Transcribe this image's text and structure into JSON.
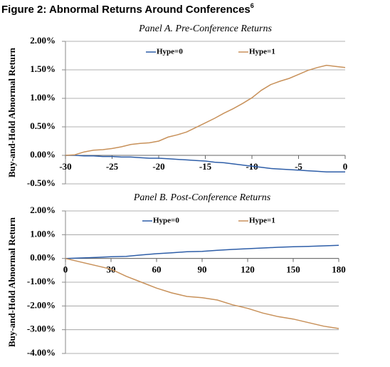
{
  "title": "Figure 2: Abnormal Returns Around Conferences",
  "title_footnote": "6",
  "chart_data": [
    {
      "type": "line",
      "subtitle": "Panel A. Pre-Conference Returns",
      "y_label": "Buy-and-Hold Abnormal Return",
      "x": [
        -30,
        -29,
        -28,
        -27,
        -26,
        -25,
        -24,
        -23,
        -22,
        -21,
        -20,
        -19,
        -18,
        -17,
        -16,
        -15,
        -14,
        -13,
        -12,
        -11,
        -10,
        -9,
        -8,
        -7,
        -6,
        -5,
        -4,
        -3,
        -2,
        -1,
        0
      ],
      "xlim": [
        -30,
        0
      ],
      "xticks": [
        -30,
        -25,
        -20,
        -15,
        -10,
        -5,
        0
      ],
      "ylim": [
        -0.5,
        2.0
      ],
      "yticks": [
        {
          "value": -0.5,
          "label": "-0.50%"
        },
        {
          "value": 0,
          "label": "0.00%"
        },
        {
          "value": 0.5,
          "label": "0.50%"
        },
        {
          "value": 1.0,
          "label": "1.00%"
        },
        {
          "value": 1.5,
          "label": "1.50%"
        },
        {
          "value": 2.0,
          "label": "2.00%"
        }
      ],
      "grid": true,
      "series": [
        {
          "name": "Hype=0",
          "color": "#2e5ea8",
          "values": [
            0,
            0,
            -0.01,
            -0.01,
            -0.02,
            -0.02,
            -0.03,
            -0.03,
            -0.04,
            -0.05,
            -0.05,
            -0.06,
            -0.07,
            -0.08,
            -0.09,
            -0.1,
            -0.12,
            -0.13,
            -0.15,
            -0.17,
            -0.19,
            -0.21,
            -0.23,
            -0.24,
            -0.25,
            -0.26,
            -0.27,
            -0.28,
            -0.29,
            -0.29,
            -0.29
          ]
        },
        {
          "name": "Hype=1",
          "color": "#c8915a",
          "values": [
            0,
            0.01,
            0.06,
            0.09,
            0.1,
            0.12,
            0.15,
            0.19,
            0.21,
            0.22,
            0.25,
            0.32,
            0.36,
            0.41,
            0.49,
            0.57,
            0.65,
            0.74,
            0.82,
            0.91,
            1.01,
            1.14,
            1.24,
            1.3,
            1.35,
            1.42,
            1.49,
            1.54,
            1.58,
            1.56,
            1.54
          ]
        }
      ]
    },
    {
      "type": "line",
      "subtitle": "Panel B. Post-Conference Returns",
      "y_label": "Buy-and-Hold Abnormal Return",
      "x": [
        0,
        10,
        20,
        30,
        40,
        50,
        60,
        70,
        80,
        90,
        100,
        110,
        120,
        130,
        140,
        150,
        160,
        170,
        180
      ],
      "xlim": [
        0,
        180
      ],
      "xticks": [
        0,
        30,
        60,
        90,
        120,
        150,
        180
      ],
      "ylim": [
        -4.0,
        2.0
      ],
      "yticks": [
        {
          "value": -4.0,
          "label": "-4.00%"
        },
        {
          "value": -3.0,
          "label": "-3.00%"
        },
        {
          "value": -2.0,
          "label": "-2.00%"
        },
        {
          "value": -1.0,
          "label": "-1.00%"
        },
        {
          "value": 0,
          "label": "0.00%"
        },
        {
          "value": 1.0,
          "label": "1.00%"
        },
        {
          "value": 2.0,
          "label": "2.00%"
        }
      ],
      "grid": true,
      "series": [
        {
          "name": "Hype=0",
          "color": "#2e5ea8",
          "values": [
            0,
            0.02,
            0.04,
            0.07,
            0.09,
            0.15,
            0.2,
            0.24,
            0.28,
            0.3,
            0.34,
            0.38,
            0.41,
            0.44,
            0.47,
            0.49,
            0.51,
            0.53,
            0.55
          ]
        },
        {
          "name": "Hype=1",
          "color": "#c8915a",
          "values": [
            0,
            -0.15,
            -0.3,
            -0.45,
            -0.75,
            -1.0,
            -1.25,
            -1.45,
            -1.6,
            -1.65,
            -1.75,
            -1.95,
            -2.1,
            -2.3,
            -2.45,
            -2.55,
            -2.7,
            -2.85,
            -2.95
          ]
        }
      ]
    }
  ]
}
